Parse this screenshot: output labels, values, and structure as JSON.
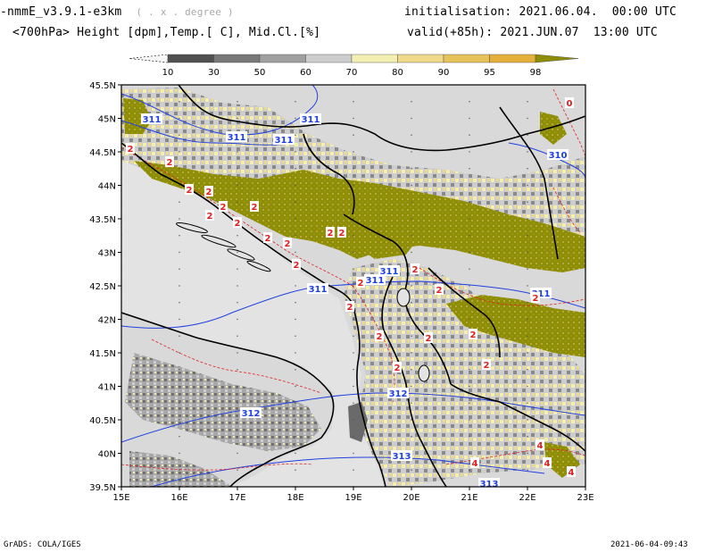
{
  "header": {
    "model": "-nmmE_v3.9.1-e3km",
    "grid": "( . x . degree )",
    "fields": "<700hPa> Height [dpm],Temp.[ C], Mid.Cl.[%]",
    "init_label": "initialisation:",
    "init_value": "2021.06.04.  00:00 UTC",
    "valid_label": "valid(+85h):",
    "valid_value": "2021.JUN.07  13:00 UTC"
  },
  "legend": {
    "labels": [
      "10",
      "30",
      "50",
      "60",
      "70",
      "80",
      "90",
      "95",
      "98"
    ],
    "colors": [
      "#f6f6f6",
      "#505050",
      "#787878",
      "#a0a0a0",
      "#cdcdcd",
      "#f3efb3",
      "#efda8b",
      "#e6c25a",
      "#e4b03b",
      "#8e8d06"
    ]
  },
  "map": {
    "lon_labels": [
      "15E",
      "16E",
      "17E",
      "18E",
      "19E",
      "20E",
      "21E",
      "22E",
      "23E"
    ],
    "lat_labels": [
      "45.5N",
      "45N",
      "44.5N",
      "44N",
      "43.5N",
      "43N",
      "42.5N",
      "42N",
      "41.5N",
      "41N",
      "40.5N",
      "40N",
      "39.5N"
    ],
    "height_labels": [
      "311",
      "311",
      "311",
      "311",
      "311",
      "311",
      "310",
      "311",
      "311",
      "312",
      "312",
      "313",
      "313"
    ],
    "temp_labels": [
      "0",
      "2",
      "2",
      "2",
      "2",
      "2",
      "2",
      "2",
      "2",
      "2",
      "2",
      "2",
      "2",
      "2",
      "2",
      "2",
      "2",
      "2",
      "2",
      "2",
      "2",
      "2",
      "2",
      "2",
      "4",
      "4",
      "4",
      "4"
    ],
    "colors": {
      "background": "#e3e3e3",
      "land_clear": "#d6d6d6",
      "cloud_high": "#8e8d06",
      "height_contour": "#2040e0",
      "temp_contour": "#e02020",
      "border": "#000000"
    }
  },
  "footer": {
    "left": "GrADS: COLA/IGES",
    "right": "2021-06-04-09:43"
  }
}
